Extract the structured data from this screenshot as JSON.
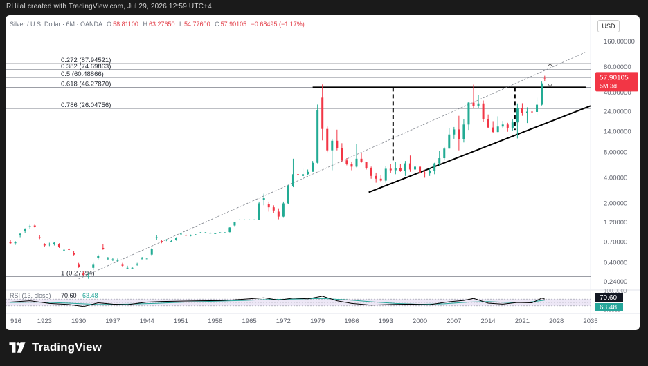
{
  "caption": "RHilal created with TradingView.com, Jul 29, 2026 12:59 UTC+4",
  "legend": {
    "symbol": "Silver / U.S. Dollar · 6M · OANDA",
    "open_label": "O",
    "open": "58.81100",
    "high_label": "H",
    "high": "63.27650",
    "low_label": "L",
    "low": "54.77600",
    "close_label": "C",
    "close": "57.90105",
    "change": "−0.68495 (−1.17%)"
  },
  "currency_button": "USD",
  "brand": "TradingView",
  "colors": {
    "up": "#22ab94",
    "down": "#f23645",
    "price_badge": "#f23645",
    "rsi_line": "#000000",
    "rsi_ma": "#26a69a",
    "rsi_fill": "#ede7f6"
  },
  "chart_data": {
    "type": "candlestick",
    "scale": "log",
    "x_ticks": [
      "916",
      "1923",
      "1930",
      "1937",
      "1944",
      "1951",
      "1958",
      "1965",
      "1972",
      "1979",
      "1986",
      "1993",
      "2000",
      "2007",
      "2014",
      "2021",
      "2028",
      "2035"
    ],
    "x_range": [
      1915,
      2035
    ],
    "y_ticks": [
      "160.00000",
      "80.00000",
      "40.00000",
      "24.00000",
      "14.00000",
      "8.00000",
      "4.00000",
      "2.00000",
      "1.20000",
      "0.70000",
      "0.40000",
      "0.24000"
    ],
    "y_tick_values": [
      160,
      80,
      40,
      24,
      14,
      8,
      4,
      2,
      1.2,
      0.7,
      0.4,
      0.24
    ],
    "price_label": "57.90105",
    "countdown_label": "5M 3d",
    "fibonacci": [
      {
        "label": "0.272 (87.94521)",
        "price": 87.94521
      },
      {
        "label": "0.382 (74.69863)",
        "price": 74.69863
      },
      {
        "label": "0.5 (60.48866)",
        "price": 60.48866
      },
      {
        "label": "0.618 (46.27870)",
        "price": 46.2787
      },
      {
        "label": "0.786 (26.04756)",
        "price": 26.04756
      },
      {
        "label": "1 (0.27694)",
        "price": 0.27694
      }
    ],
    "trendlines": [
      {
        "name": "resistance",
        "from": [
          1978,
          46.3
        ],
        "to": [
          2034,
          46.3
        ],
        "style": "solid"
      },
      {
        "name": "rising-support",
        "from": [
          1989.5,
          2.7
        ],
        "to": [
          2035,
          28
        ],
        "style": "solid"
      },
      {
        "name": "long-term-channel",
        "from": [
          1930,
          0.26
        ],
        "to": [
          2034,
          120
        ],
        "style": "dashed"
      },
      {
        "name": "measured-move-1",
        "from": [
          1994.5,
          46.3
        ],
        "to": [
          1994.5,
          6.2
        ],
        "style": "dashed"
      },
      {
        "name": "measured-move-2",
        "from": [
          2019.5,
          46.3
        ],
        "to": [
          2019.5,
          14.6
        ],
        "style": "dashed"
      }
    ],
    "candles": [
      {
        "x": 1916.0,
        "o": 0.7,
        "h": 0.74,
        "l": 0.66,
        "c": 0.68
      },
      {
        "x": 1917.0,
        "o": 0.68,
        "h": 0.72,
        "l": 0.65,
        "c": 0.7
      },
      {
        "x": 1918.0,
        "o": 0.85,
        "h": 0.9,
        "l": 0.8,
        "c": 0.88
      },
      {
        "x": 1919.0,
        "o": 0.95,
        "h": 1.02,
        "l": 0.9,
        "c": 1.0
      },
      {
        "x": 1920.0,
        "o": 1.05,
        "h": 1.12,
        "l": 1.0,
        "c": 1.08
      },
      {
        "x": 1921.0,
        "o": 1.1,
        "h": 1.14,
        "l": 1.04,
        "c": 1.06
      },
      {
        "x": 1922.0,
        "o": 0.8,
        "h": 0.84,
        "l": 0.76,
        "c": 0.78
      },
      {
        "x": 1923.0,
        "o": 0.66,
        "h": 0.68,
        "l": 0.62,
        "c": 0.64
      },
      {
        "x": 1924.0,
        "o": 0.66,
        "h": 0.69,
        "l": 0.63,
        "c": 0.67
      },
      {
        "x": 1925.0,
        "o": 0.67,
        "h": 0.7,
        "l": 0.64,
        "c": 0.69
      },
      {
        "x": 1926.0,
        "o": 0.66,
        "h": 0.68,
        "l": 0.6,
        "c": 0.62
      },
      {
        "x": 1927.0,
        "o": 0.56,
        "h": 0.6,
        "l": 0.53,
        "c": 0.57
      },
      {
        "x": 1928.0,
        "o": 0.58,
        "h": 0.6,
        "l": 0.55,
        "c": 0.57
      },
      {
        "x": 1929.0,
        "o": 0.52,
        "h": 0.55,
        "l": 0.49,
        "c": 0.5
      },
      {
        "x": 1930.0,
        "o": 0.38,
        "h": 0.4,
        "l": 0.35,
        "c": 0.36
      },
      {
        "x": 1931.0,
        "o": 0.3,
        "h": 0.32,
        "l": 0.28,
        "c": 0.29
      },
      {
        "x": 1932.0,
        "o": 0.28,
        "h": 0.3,
        "l": 0.26,
        "c": 0.28
      },
      {
        "x": 1933.0,
        "o": 0.35,
        "h": 0.4,
        "l": 0.33,
        "c": 0.38
      },
      {
        "x": 1934.0,
        "o": 0.46,
        "h": 0.5,
        "l": 0.44,
        "c": 0.48
      },
      {
        "x": 1935.0,
        "o": 0.6,
        "h": 0.66,
        "l": 0.57,
        "c": 0.58
      },
      {
        "x": 1936.0,
        "o": 0.45,
        "h": 0.47,
        "l": 0.43,
        "c": 0.45
      },
      {
        "x": 1937.0,
        "o": 0.44,
        "h": 0.46,
        "l": 0.42,
        "c": 0.44
      },
      {
        "x": 1938.0,
        "o": 0.43,
        "h": 0.45,
        "l": 0.41,
        "c": 0.43
      },
      {
        "x": 1939.0,
        "o": 0.38,
        "h": 0.4,
        "l": 0.36,
        "c": 0.37
      },
      {
        "x": 1940.0,
        "o": 0.35,
        "h": 0.37,
        "l": 0.34,
        "c": 0.35
      },
      {
        "x": 1941.0,
        "o": 0.35,
        "h": 0.36,
        "l": 0.34,
        "c": 0.35
      },
      {
        "x": 1942.0,
        "o": 0.38,
        "h": 0.4,
        "l": 0.37,
        "c": 0.39
      },
      {
        "x": 1943.0,
        "o": 0.45,
        "h": 0.47,
        "l": 0.44,
        "c": 0.45
      },
      {
        "x": 1944.0,
        "o": 0.45,
        "h": 0.46,
        "l": 0.44,
        "c": 0.45
      },
      {
        "x": 1945.0,
        "o": 0.5,
        "h": 0.6,
        "l": 0.48,
        "c": 0.58
      },
      {
        "x": 1946.0,
        "o": 0.8,
        "h": 0.85,
        "l": 0.75,
        "c": 0.8
      },
      {
        "x": 1947.0,
        "o": 0.72,
        "h": 0.74,
        "l": 0.68,
        "c": 0.7
      },
      {
        "x": 1948.0,
        "o": 0.74,
        "h": 0.76,
        "l": 0.72,
        "c": 0.75
      },
      {
        "x": 1949.0,
        "o": 0.72,
        "h": 0.74,
        "l": 0.7,
        "c": 0.72
      },
      {
        "x": 1950.0,
        "o": 0.75,
        "h": 0.8,
        "l": 0.73,
        "c": 0.78
      },
      {
        "x": 1951.0,
        "o": 0.88,
        "h": 0.9,
        "l": 0.85,
        "c": 0.88
      },
      {
        "x": 1952.0,
        "o": 0.85,
        "h": 0.88,
        "l": 0.83,
        "c": 0.84
      },
      {
        "x": 1953.0,
        "o": 0.84,
        "h": 0.86,
        "l": 0.82,
        "c": 0.85
      },
      {
        "x": 1954.0,
        "o": 0.85,
        "h": 0.87,
        "l": 0.84,
        "c": 0.86
      },
      {
        "x": 1955.0,
        "o": 0.9,
        "h": 0.92,
        "l": 0.89,
        "c": 0.91
      },
      {
        "x": 1956.0,
        "o": 0.91,
        "h": 0.92,
        "l": 0.9,
        "c": 0.91
      },
      {
        "x": 1957.0,
        "o": 0.9,
        "h": 0.91,
        "l": 0.89,
        "c": 0.9
      },
      {
        "x": 1958.0,
        "o": 0.89,
        "h": 0.9,
        "l": 0.88,
        "c": 0.89
      },
      {
        "x": 1959.0,
        "o": 0.91,
        "h": 0.92,
        "l": 0.9,
        "c": 0.91
      },
      {
        "x": 1960.0,
        "o": 0.91,
        "h": 0.92,
        "l": 0.9,
        "c": 0.91
      },
      {
        "x": 1961.0,
        "o": 0.92,
        "h": 1.05,
        "l": 0.91,
        "c": 1.04
      },
      {
        "x": 1962.0,
        "o": 1.1,
        "h": 1.22,
        "l": 1.08,
        "c": 1.2
      },
      {
        "x": 1963.0,
        "o": 1.28,
        "h": 1.3,
        "l": 1.27,
        "c": 1.29
      },
      {
        "x": 1964.0,
        "o": 1.29,
        "h": 1.3,
        "l": 1.28,
        "c": 1.29
      },
      {
        "x": 1965.0,
        "o": 1.29,
        "h": 1.3,
        "l": 1.28,
        "c": 1.29
      },
      {
        "x": 1966.0,
        "o": 1.29,
        "h": 1.3,
        "l": 1.28,
        "c": 1.29
      },
      {
        "x": 1967.0,
        "o": 1.29,
        "h": 2.1,
        "l": 1.28,
        "c": 2.0
      },
      {
        "x": 1968.0,
        "o": 2.2,
        "h": 2.6,
        "l": 1.9,
        "c": 2.3
      },
      {
        "x": 1969.0,
        "o": 1.95,
        "h": 2.1,
        "l": 1.6,
        "c": 1.8
      },
      {
        "x": 1970.0,
        "o": 1.8,
        "h": 1.9,
        "l": 1.55,
        "c": 1.65
      },
      {
        "x": 1971.0,
        "o": 1.6,
        "h": 1.75,
        "l": 1.3,
        "c": 1.4
      },
      {
        "x": 1972.0,
        "o": 1.4,
        "h": 2.1,
        "l": 1.38,
        "c": 2.0
      },
      {
        "x": 1973.0,
        "o": 2.0,
        "h": 3.3,
        "l": 1.95,
        "c": 3.2
      },
      {
        "x": 1974.0,
        "o": 3.2,
        "h": 6.7,
        "l": 3.1,
        "c": 4.4
      },
      {
        "x": 1975.0,
        "o": 4.4,
        "h": 5.3,
        "l": 3.9,
        "c": 4.3
      },
      {
        "x": 1976.0,
        "o": 4.2,
        "h": 5.1,
        "l": 3.8,
        "c": 4.4
      },
      {
        "x": 1977.0,
        "o": 4.4,
        "h": 5.0,
        "l": 4.3,
        "c": 4.7
      },
      {
        "x": 1978.0,
        "o": 4.7,
        "h": 6.3,
        "l": 4.8,
        "c": 6.0
      },
      {
        "x": 1979.0,
        "o": 6.0,
        "h": 29.0,
        "l": 5.9,
        "c": 25.0
      },
      {
        "x": 1980.0,
        "o": 35.0,
        "h": 50.0,
        "l": 11.0,
        "c": 15.0
      },
      {
        "x": 1981.0,
        "o": 15.0,
        "h": 16.0,
        "l": 8.0,
        "c": 8.4
      },
      {
        "x": 1982.0,
        "o": 8.4,
        "h": 11.5,
        "l": 4.9,
        "c": 10.9
      },
      {
        "x": 1983.0,
        "o": 10.9,
        "h": 14.7,
        "l": 8.4,
        "c": 8.9
      },
      {
        "x": 1984.0,
        "o": 8.9,
        "h": 10.2,
        "l": 6.2,
        "c": 6.4
      },
      {
        "x": 1985.0,
        "o": 6.4,
        "h": 6.8,
        "l": 5.6,
        "c": 5.8
      },
      {
        "x": 1986.0,
        "o": 5.8,
        "h": 6.2,
        "l": 4.9,
        "c": 5.4
      },
      {
        "x": 1987.0,
        "o": 5.4,
        "h": 10.0,
        "l": 5.3,
        "c": 6.7
      },
      {
        "x": 1988.0,
        "o": 6.7,
        "h": 7.8,
        "l": 6.0,
        "c": 6.1
      },
      {
        "x": 1989.0,
        "o": 6.1,
        "h": 6.2,
        "l": 5.0,
        "c": 5.2
      },
      {
        "x": 1990.0,
        "o": 5.2,
        "h": 5.4,
        "l": 3.9,
        "c": 4.2
      },
      {
        "x": 1991.0,
        "o": 4.2,
        "h": 4.6,
        "l": 3.5,
        "c": 3.9
      },
      {
        "x": 1992.0,
        "o": 3.9,
        "h": 4.3,
        "l": 3.6,
        "c": 3.7
      },
      {
        "x": 1993.0,
        "o": 3.7,
        "h": 5.5,
        "l": 3.5,
        "c": 5.1
      },
      {
        "x": 1994.0,
        "o": 5.1,
        "h": 5.8,
        "l": 4.6,
        "c": 4.9
      },
      {
        "x": 1995.0,
        "o": 4.9,
        "h": 6.1,
        "l": 4.4,
        "c": 5.2
      },
      {
        "x": 1996.0,
        "o": 5.2,
        "h": 5.8,
        "l": 4.7,
        "c": 4.8
      },
      {
        "x": 1997.0,
        "o": 4.8,
        "h": 6.3,
        "l": 4.2,
        "c": 5.9
      },
      {
        "x": 1998.0,
        "o": 5.9,
        "h": 7.3,
        "l": 4.7,
        "c": 5.0
      },
      {
        "x": 1999.0,
        "o": 5.0,
        "h": 5.8,
        "l": 4.9,
        "c": 5.4
      },
      {
        "x": 2000.0,
        "o": 5.4,
        "h": 5.5,
        "l": 4.6,
        "c": 4.6
      },
      {
        "x": 2001.0,
        "o": 4.6,
        "h": 4.9,
        "l": 4.0,
        "c": 4.5
      },
      {
        "x": 2002.0,
        "o": 4.5,
        "h": 5.1,
        "l": 4.2,
        "c": 4.8
      },
      {
        "x": 2003.0,
        "o": 4.8,
        "h": 6.0,
        "l": 4.4,
        "c": 5.9
      },
      {
        "x": 2004.0,
        "o": 5.9,
        "h": 8.3,
        "l": 5.5,
        "c": 6.8
      },
      {
        "x": 2005.0,
        "o": 6.8,
        "h": 9.2,
        "l": 6.4,
        "c": 8.8
      },
      {
        "x": 2006.0,
        "o": 8.8,
        "h": 15.2,
        "l": 8.8,
        "c": 12.9
      },
      {
        "x": 2007.0,
        "o": 12.9,
        "h": 15.8,
        "l": 11.5,
        "c": 14.8
      },
      {
        "x": 2008.0,
        "o": 14.8,
        "h": 21.4,
        "l": 8.4,
        "c": 11.3
      },
      {
        "x": 2009.0,
        "o": 11.3,
        "h": 19.5,
        "l": 10.4,
        "c": 16.9
      },
      {
        "x": 2010.0,
        "o": 16.9,
        "h": 31.0,
        "l": 14.6,
        "c": 30.6
      },
      {
        "x": 2011.0,
        "o": 30.6,
        "h": 49.8,
        "l": 26.1,
        "c": 27.9
      },
      {
        "x": 2012.0,
        "o": 27.9,
        "h": 37.5,
        "l": 26.2,
        "c": 29.9
      },
      {
        "x": 2013.0,
        "o": 29.9,
        "h": 32.4,
        "l": 18.2,
        "c": 19.4
      },
      {
        "x": 2014.0,
        "o": 19.4,
        "h": 22.2,
        "l": 15.3,
        "c": 15.6
      },
      {
        "x": 2015.0,
        "o": 15.6,
        "h": 18.5,
        "l": 13.6,
        "c": 13.8
      },
      {
        "x": 2016.0,
        "o": 13.8,
        "h": 21.1,
        "l": 13.7,
        "c": 16.0
      },
      {
        "x": 2017.0,
        "o": 16.0,
        "h": 18.6,
        "l": 15.2,
        "c": 16.9
      },
      {
        "x": 2018.0,
        "o": 16.9,
        "h": 17.7,
        "l": 13.9,
        "c": 15.5
      },
      {
        "x": 2019.0,
        "o": 15.5,
        "h": 19.7,
        "l": 14.3,
        "c": 17.9
      },
      {
        "x": 2020.0,
        "o": 17.9,
        "h": 29.9,
        "l": 11.6,
        "c": 26.4
      },
      {
        "x": 2021.0,
        "o": 26.4,
        "h": 30.1,
        "l": 21.4,
        "c": 23.3
      },
      {
        "x": 2022.0,
        "o": 23.3,
        "h": 26.9,
        "l": 17.6,
        "c": 24.0
      },
      {
        "x": 2023.0,
        "o": 24.0,
        "h": 26.1,
        "l": 19.9,
        "c": 23.8
      },
      {
        "x": 2024.0,
        "o": 23.8,
        "h": 35.0,
        "l": 21.9,
        "c": 28.9
      },
      {
        "x": 2025.0,
        "o": 28.9,
        "h": 54.0,
        "l": 28.3,
        "c": 51.5
      },
      {
        "x": 2025.6,
        "o": 58.8,
        "h": 63.3,
        "l": 54.8,
        "c": 57.9
      }
    ],
    "rsi": {
      "label": "RSI (13, close)",
      "value": "70.60",
      "ma_value": "63.48",
      "y_ticks": [
        "100.0000",
        "0.0000"
      ],
      "values": [
        [
          1916,
          52
        ],
        [
          1920,
          60
        ],
        [
          1924,
          44
        ],
        [
          1928,
          38
        ],
        [
          1931,
          26
        ],
        [
          1934,
          48
        ],
        [
          1937,
          40
        ],
        [
          1940,
          37
        ],
        [
          1944,
          52
        ],
        [
          1947,
          56
        ],
        [
          1951,
          58
        ],
        [
          1955,
          60
        ],
        [
          1959,
          61
        ],
        [
          1962,
          66
        ],
        [
          1965,
          72
        ],
        [
          1968,
          78
        ],
        [
          1971,
          64
        ],
        [
          1974,
          76
        ],
        [
          1977,
          72
        ],
        [
          1980,
          88
        ],
        [
          1983,
          60
        ],
        [
          1986,
          44
        ],
        [
          1990,
          34
        ],
        [
          1994,
          38
        ],
        [
          1998,
          40
        ],
        [
          2002,
          37
        ],
        [
          2006,
          54
        ],
        [
          2009,
          62
        ],
        [
          2011,
          74
        ],
        [
          2014,
          46
        ],
        [
          2017,
          40
        ],
        [
          2020,
          50
        ],
        [
          2023,
          48
        ],
        [
          2025,
          76
        ],
        [
          2025.6,
          70.6
        ]
      ],
      "ma_values": [
        [
          1916,
          50
        ],
        [
          1922,
          52
        ],
        [
          1928,
          46
        ],
        [
          1934,
          38
        ],
        [
          1940,
          40
        ],
        [
          1946,
          45
        ],
        [
          1952,
          52
        ],
        [
          1958,
          57
        ],
        [
          1964,
          62
        ],
        [
          1969,
          68
        ],
        [
          1974,
          70
        ],
        [
          1980,
          74
        ],
        [
          1985,
          66
        ],
        [
          1990,
          54
        ],
        [
          1995,
          44
        ],
        [
          2000,
          39
        ],
        [
          2005,
          42
        ],
        [
          2010,
          52
        ],
        [
          2014,
          55
        ],
        [
          2018,
          50
        ],
        [
          2022,
          50
        ],
        [
          2025.6,
          63.48
        ]
      ]
    }
  }
}
